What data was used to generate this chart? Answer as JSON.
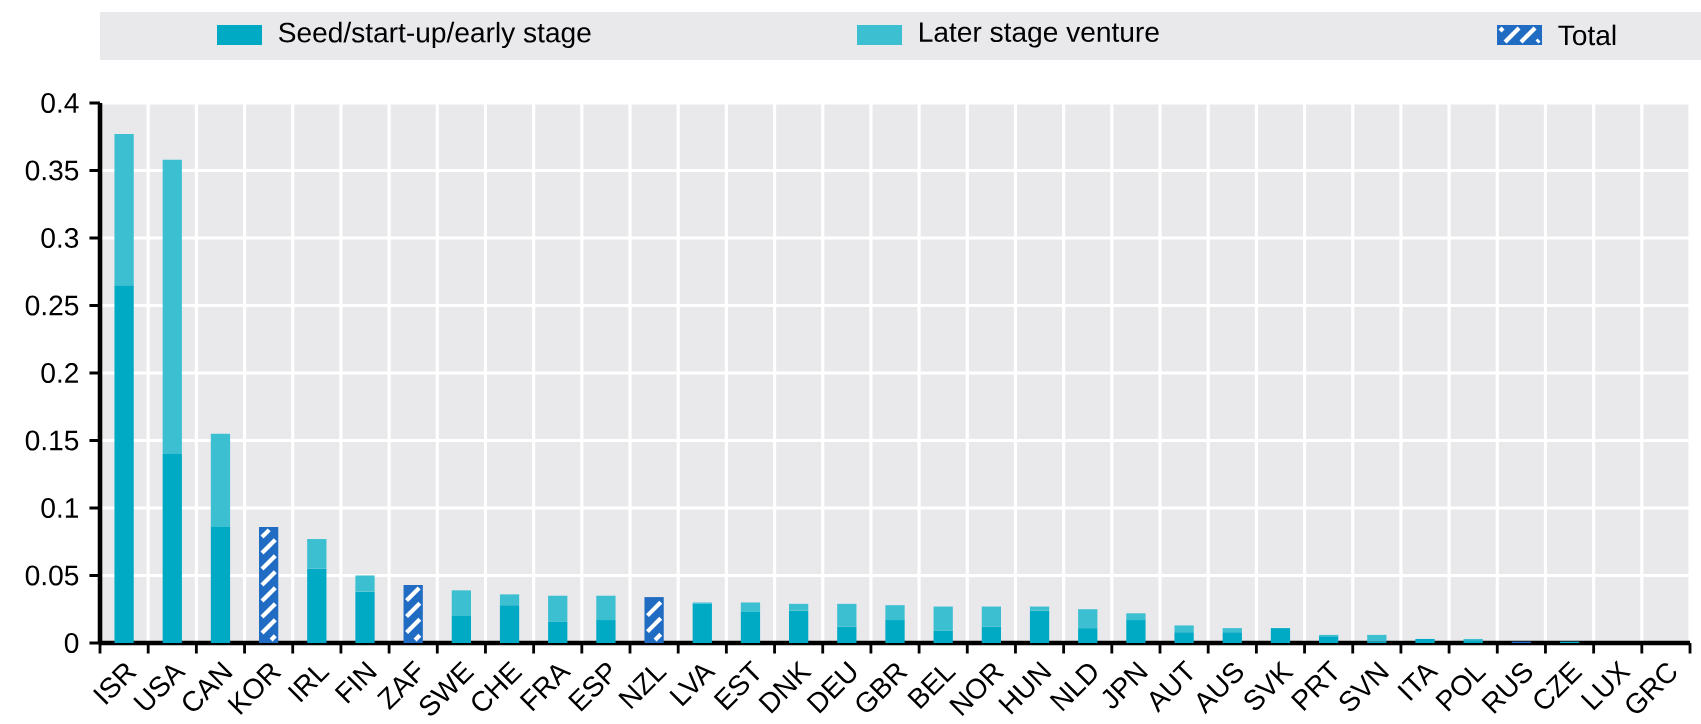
{
  "chart_data": {
    "type": "bar",
    "stacked": true,
    "grid": true,
    "legend": "top",
    "categories": [
      "ISR",
      "USA",
      "CAN",
      "KOR",
      "IRL",
      "FIN",
      "ZAF",
      "SWE",
      "CHE",
      "FRA",
      "ESP",
      "NZL",
      "LVA",
      "EST",
      "DNK",
      "DEU",
      "GBR",
      "BEL",
      "NOR",
      "HUN",
      "NLD",
      "JPN",
      "AUT",
      "AUS",
      "SVK",
      "PRT",
      "SVN",
      "ITA",
      "POL",
      "RUS",
      "CZE",
      "LUX",
      "GRC"
    ],
    "series": [
      {
        "name": "Seed/start-up/early stage",
        "color": "#00a9c4",
        "values": [
          0.265,
          0.14,
          0.086,
          null,
          0.055,
          0.038,
          null,
          0.02,
          0.028,
          0.016,
          0.017,
          null,
          0.029,
          0.023,
          0.024,
          0.012,
          0.017,
          0.009,
          0.012,
          0.024,
          0.011,
          0.017,
          0.008,
          0.008,
          0.011,
          0.005,
          0.001,
          0.003,
          0.002,
          null,
          0.001,
          null,
          null
        ]
      },
      {
        "name": "Later stage venture",
        "color": "#3bbfd1",
        "values": [
          0.112,
          0.218,
          0.069,
          null,
          0.022,
          0.012,
          null,
          0.019,
          0.008,
          0.019,
          0.018,
          null,
          0.001,
          0.007,
          0.005,
          0.017,
          0.011,
          0.018,
          0.015,
          0.003,
          0.014,
          0.005,
          0.005,
          0.003,
          null,
          0.001,
          0.005,
          null,
          0.001,
          null,
          null,
          null,
          null
        ]
      },
      {
        "name": "Total",
        "color": "#1f6cc2",
        "values": [
          null,
          null,
          null,
          0.086,
          null,
          null,
          0.043,
          null,
          null,
          null,
          null,
          0.034,
          null,
          null,
          null,
          null,
          null,
          null,
          null,
          null,
          null,
          null,
          null,
          null,
          null,
          null,
          null,
          null,
          null,
          0.001,
          null,
          null,
          null
        ]
      }
    ],
    "ylim": [
      0,
      0.4
    ],
    "yticks": [
      0,
      0.05,
      0.1,
      0.15,
      0.2,
      0.25,
      0.3,
      0.35,
      0.4
    ]
  }
}
